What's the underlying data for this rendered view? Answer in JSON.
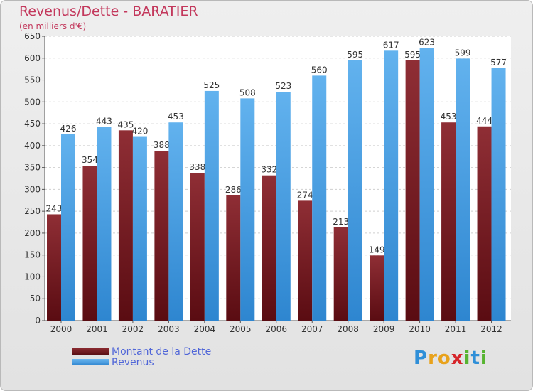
{
  "header": {
    "title": "Revenus/Dette - BARATIER",
    "subtitle": "(en milliers d'€)"
  },
  "colors": {
    "dette": "#7a1f26",
    "revenus": "#4fa3e6",
    "title": "#c3385c",
    "legend_text": "#5066d8"
  },
  "chart_data": {
    "type": "bar",
    "title": "Revenus/Dette - BARATIER",
    "subtitle": "(en milliers d'€)",
    "categories": [
      "2000",
      "2001",
      "2002",
      "2003",
      "2004",
      "2005",
      "2006",
      "2007",
      "2008",
      "2009",
      "2010",
      "2011",
      "2012"
    ],
    "series": [
      {
        "name": "Montant de la Dette",
        "values": [
          243,
          354,
          435,
          388,
          338,
          286,
          332,
          274,
          213,
          149,
          595,
          453,
          444
        ]
      },
      {
        "name": "Revenus",
        "values": [
          426,
          443,
          420,
          453,
          525,
          508,
          523,
          560,
          595,
          617,
          623,
          599,
          577
        ]
      }
    ],
    "ylim": [
      0,
      650
    ],
    "yticks": [
      0,
      50,
      100,
      150,
      200,
      250,
      300,
      350,
      400,
      450,
      500,
      550,
      600,
      650
    ],
    "grid": true,
    "legend_position": "bottom-left"
  },
  "legend": {
    "items": [
      {
        "label": "Montant de la Dette"
      },
      {
        "label": "Revenus"
      }
    ]
  },
  "logo": {
    "letters": [
      "P",
      "r",
      "o",
      "x",
      "i",
      "t",
      "i"
    ],
    "colors": [
      "#2f8fd8",
      "#e8a21c",
      "#e8a21c",
      "#d6262b",
      "#57b431",
      "#2f8fd8",
      "#57b431"
    ]
  }
}
